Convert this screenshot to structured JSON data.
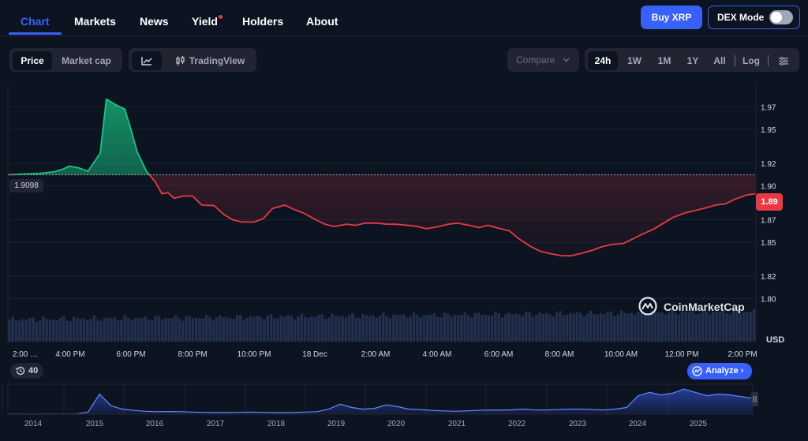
{
  "nav": {
    "tabs": [
      {
        "label": "Chart",
        "active": true
      },
      {
        "label": "Markets"
      },
      {
        "label": "News"
      },
      {
        "label": "Yield",
        "dot": true
      },
      {
        "label": "Holders"
      },
      {
        "label": "About"
      }
    ],
    "buy_label": "Buy XRP",
    "dex_label": "DEX Mode",
    "dex_on": false
  },
  "controls": {
    "metric_tabs": [
      "Price",
      "Market cap"
    ],
    "metric_selected": "Price",
    "chart_style_label": "TradingView",
    "compare_label": "Compare",
    "ranges": [
      "24h",
      "1W",
      "1M",
      "1Y",
      "All"
    ],
    "range_selected": "24h",
    "log_label": "Log"
  },
  "chart_data": {
    "type": "area",
    "currency_label": "USD",
    "y_ticks": [
      "1.97",
      "1.95",
      "1.92",
      "1.90",
      "1.87",
      "1.85",
      "1.82",
      "1.80"
    ],
    "x_ticks": [
      "2:00 …",
      "4:00 PM",
      "6:00 PM",
      "8:00 PM",
      "10:00 PM",
      "18 Dec",
      "2:00 AM",
      "4:00 AM",
      "6:00 AM",
      "8:00 AM",
      "10:00 AM",
      "12:00 PM",
      "2:00 PM"
    ],
    "open_price_label": "1.9098",
    "last_price_label": "1.89",
    "ylim": [
      1.785,
      1.99
    ],
    "open_price": 1.9098,
    "up_color": "#16c784",
    "down_color": "#ea3943",
    "series": [
      {
        "x": [
          0.0,
          0.5,
          1.0,
          1.5,
          1.8,
          2.0,
          2.3,
          2.6,
          3.0,
          3.2,
          3.5,
          3.8,
          4.0,
          4.2,
          4.5,
          4.8,
          5.0,
          5.2,
          5.4,
          5.7,
          6.0,
          6.3,
          6.7,
          7.0,
          7.3,
          7.6,
          8.0,
          8.3,
          8.6,
          9.0,
          9.3,
          9.6,
          10.0,
          10.3,
          10.6,
          11.0,
          11.3,
          11.6,
          12.0,
          12.3,
          12.6,
          13.0,
          13.3,
          13.6,
          14.0,
          14.3,
          14.6,
          15.0,
          15.3,
          15.6,
          16.0,
          16.3,
          16.6,
          17.0,
          17.3,
          17.6,
          18.0,
          18.3,
          18.6,
          19.0,
          19.3,
          19.6,
          20.0,
          20.3,
          20.6,
          21.0,
          21.3,
          21.6,
          22.0,
          22.3,
          22.6,
          23.0,
          23.3,
          23.6,
          24.0,
          24.3
        ],
        "values": [
          1.9098,
          1.9105,
          1.911,
          1.9125,
          1.915,
          1.9175,
          1.916,
          1.913,
          1.929,
          1.977,
          1.972,
          1.968,
          1.95,
          1.93,
          1.913,
          1.903,
          1.893,
          1.894,
          1.889,
          1.891,
          1.891,
          1.883,
          1.8825,
          1.875,
          1.87,
          1.868,
          1.868,
          1.871,
          1.88,
          1.883,
          1.879,
          1.876,
          1.87,
          1.866,
          1.864,
          1.866,
          1.865,
          1.867,
          1.867,
          1.866,
          1.866,
          1.865,
          1.864,
          1.862,
          1.864,
          1.866,
          1.867,
          1.865,
          1.863,
          1.865,
          1.862,
          1.86,
          1.853,
          1.846,
          1.842,
          1.84,
          1.838,
          1.838,
          1.84,
          1.843,
          1.846,
          1.848,
          1.849,
          1.853,
          1.857,
          1.862,
          1.867,
          1.872,
          1.876,
          1.878,
          1.88,
          1.883,
          1.884,
          1.888,
          1.892,
          1.893
        ]
      }
    ],
    "volume_bars": 220
  },
  "overview": {
    "years": [
      "2014",
      "2015",
      "2016",
      "2017",
      "2018",
      "2019",
      "2020",
      "2021",
      "2022",
      "2023",
      "2024",
      "2025"
    ],
    "history_count": "40",
    "analyze_label": "Analyze",
    "values": [
      0.006,
      0.005,
      0.004,
      0.006,
      0.006,
      0.008,
      0.02,
      0.25,
      2.4,
      1.0,
      0.6,
      0.45,
      0.35,
      0.3,
      0.32,
      0.3,
      0.25,
      0.22,
      0.2,
      0.2,
      0.22,
      0.25,
      0.22,
      0.2,
      0.18,
      0.2,
      0.25,
      0.3,
      0.6,
      1.2,
      0.8,
      0.6,
      0.7,
      1.1,
      0.9,
      0.6,
      0.55,
      0.45,
      0.4,
      0.35,
      0.4,
      0.45,
      0.5,
      0.48,
      0.52,
      0.6,
      0.5,
      0.5,
      0.55,
      0.6,
      0.6,
      0.55,
      0.5,
      0.6,
      0.8,
      2.2,
      2.6,
      2.3,
      2.5,
      3.0,
      2.6,
      2.2,
      2.4,
      2.3,
      2.1,
      1.9
    ]
  },
  "watermark": "CoinMarketCap"
}
